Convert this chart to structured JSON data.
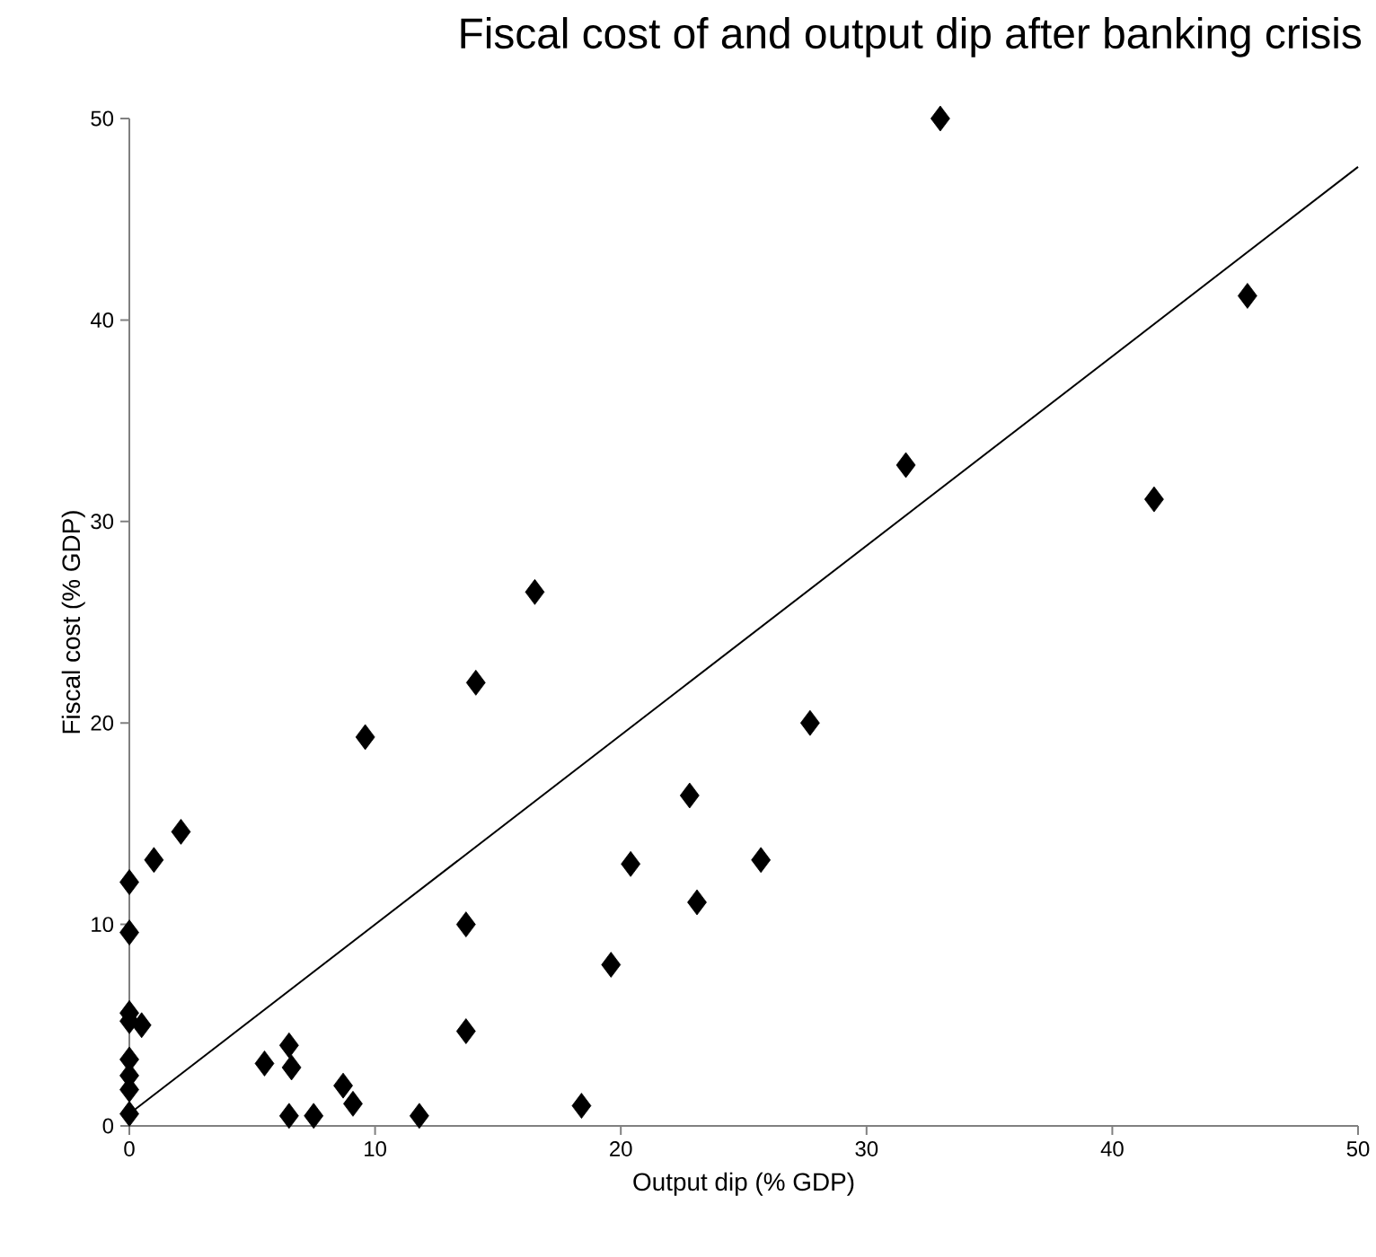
{
  "chart_data": {
    "type": "scatter",
    "title": "Fiscal cost of and output dip after banking crisis",
    "xlabel": "Output dip (% GDP)",
    "ylabel": "Fiscal cost (% GDP)",
    "xlim": [
      0,
      50
    ],
    "ylim": [
      0,
      50
    ],
    "xticks": [
      0,
      10,
      20,
      30,
      40,
      50
    ],
    "yticks": [
      0,
      10,
      20,
      30,
      40,
      50
    ],
    "grid": false,
    "series": [
      {
        "marker": "diamond",
        "color": "#000000",
        "x": [
          0,
          0,
          0,
          0,
          0,
          0,
          0,
          0,
          0.5,
          1,
          2.1,
          5.5,
          6.5,
          6.6,
          6.5,
          7.5,
          8.7,
          9.1,
          11.8,
          9.6,
          13.7,
          13.7,
          14.1,
          16.5,
          18.4,
          19.6,
          20.4,
          22.8,
          23.1,
          25.7,
          27.7,
          31.6,
          33.0,
          41.7,
          45.5
        ],
        "values": [
          12.1,
          9.6,
          5.6,
          5.2,
          3.3,
          2.5,
          1.8,
          0.6,
          5.0,
          13.2,
          14.6,
          3.1,
          4.0,
          2.9,
          0.5,
          0.5,
          2.0,
          1.1,
          0.5,
          19.3,
          10.0,
          4.7,
          22.0,
          26.5,
          1.0,
          8.0,
          13.0,
          16.4,
          11.1,
          13.2,
          20.0,
          32.8,
          50.0,
          31.1,
          41.2
        ]
      },
      {
        "type": "line",
        "marker": "none",
        "color": "#000000",
        "x": [
          0,
          50
        ],
        "values": [
          0.6,
          47.6
        ]
      }
    ]
  }
}
